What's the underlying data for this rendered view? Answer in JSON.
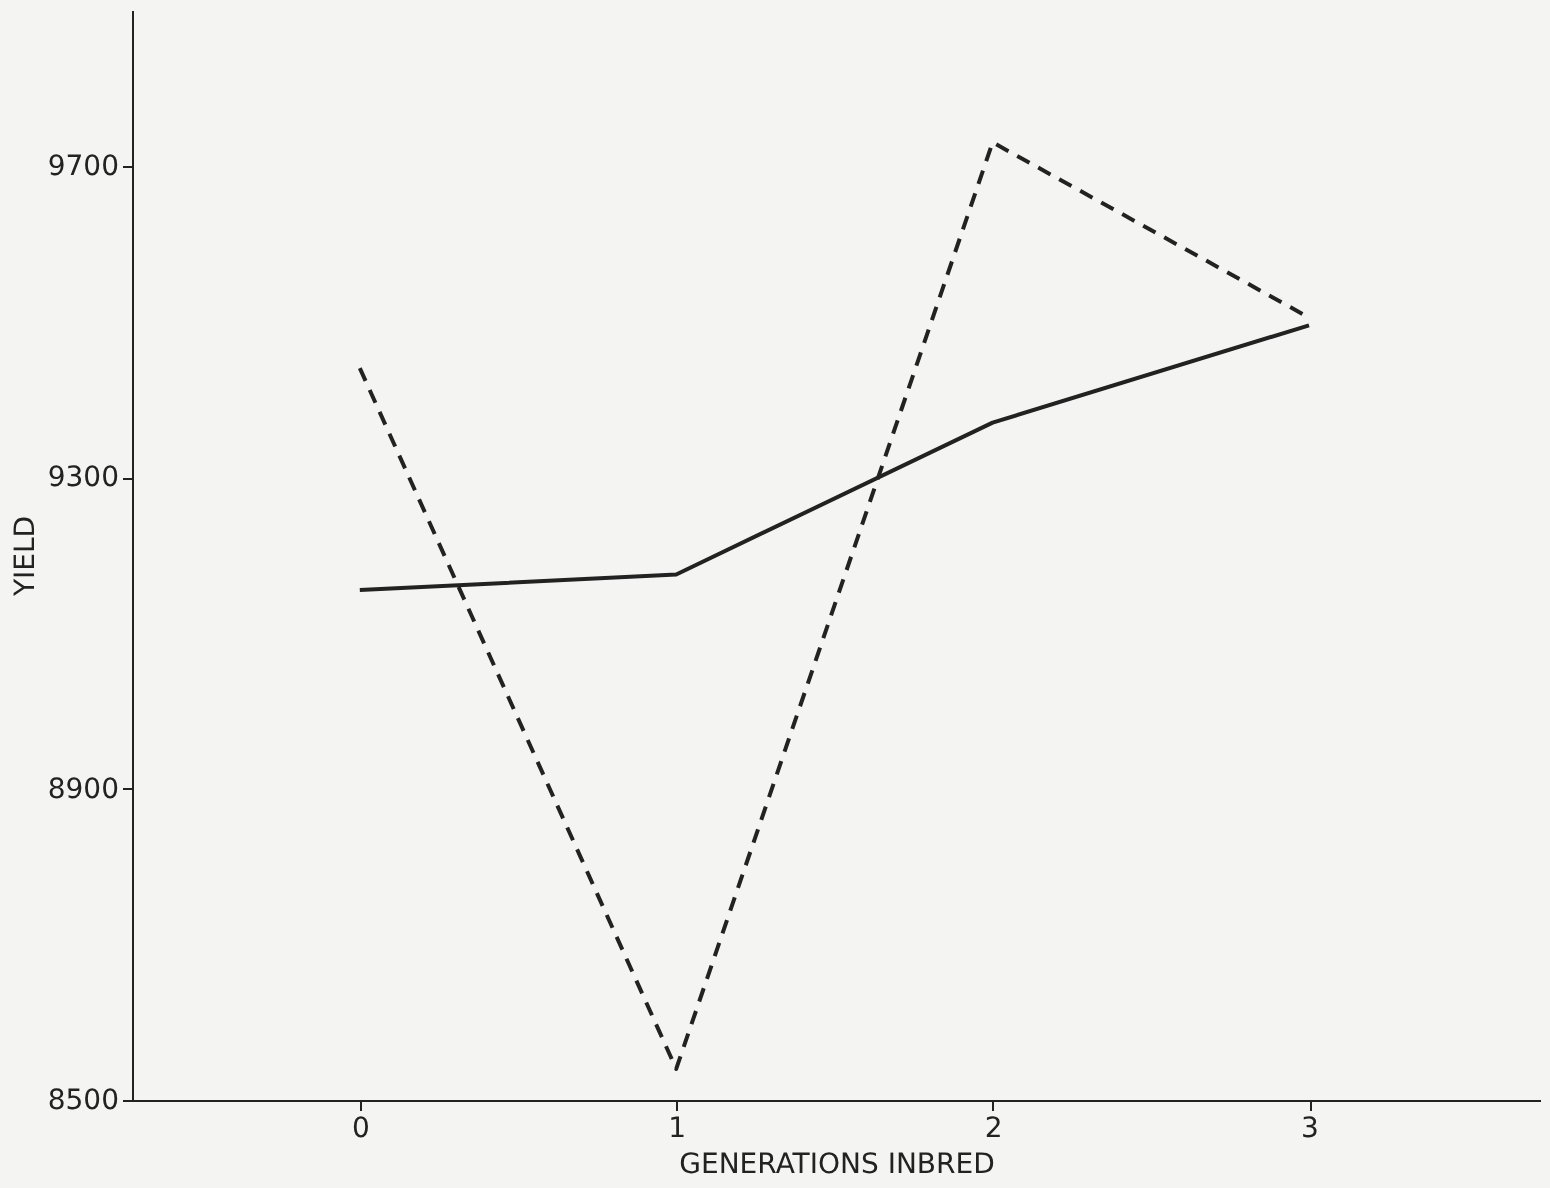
{
  "chart_data": {
    "type": "line",
    "xlabel": "GENERATIONS INBRED",
    "ylabel": "YIELD",
    "x": [
      0,
      1,
      2,
      3
    ],
    "series": [
      {
        "color": "#222222",
        "line_style": "solid",
        "values": [
          9155,
          9175,
          9370,
          9495
        ]
      },
      {
        "color": "#222222",
        "line_style": "dashed",
        "values": [
          9440,
          8540,
          9730,
          9505
        ]
      }
    ],
    "xlim": [
      -0.72,
      3.73
    ],
    "xticks": [
      0,
      1,
      2,
      3
    ],
    "ylim": [
      8500,
      9900
    ],
    "yticks": [
      8500,
      8900,
      9300,
      9700
    ],
    "grid": false,
    "marker": "none"
  }
}
